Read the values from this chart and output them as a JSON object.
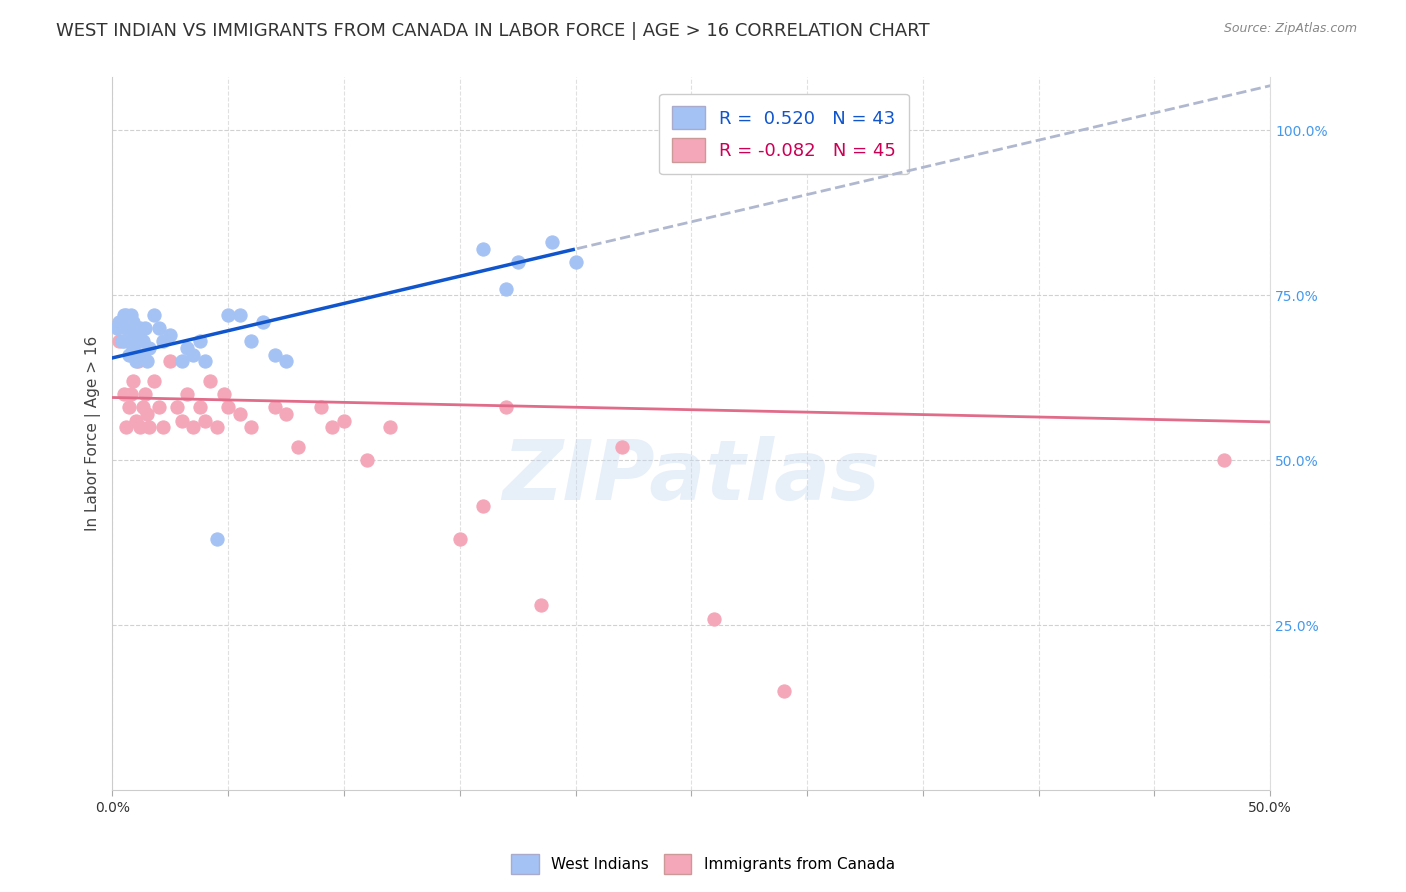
{
  "title": "WEST INDIAN VS IMMIGRANTS FROM CANADA IN LABOR FORCE | AGE > 16 CORRELATION CHART",
  "source": "Source: ZipAtlas.com",
  "ylabel": "In Labor Force | Age > 16",
  "right_yticks": [
    "100.0%",
    "75.0%",
    "50.0%",
    "25.0%"
  ],
  "right_ytick_vals": [
    1.0,
    0.75,
    0.5,
    0.25
  ],
  "xlim": [
    0.0,
    0.5
  ],
  "ylim": [
    0.0,
    1.08
  ],
  "blue_R": 0.52,
  "blue_N": 43,
  "pink_R": -0.082,
  "pink_N": 45,
  "blue_color": "#a4c2f4",
  "pink_color": "#f4a7b9",
  "blue_line_color": "#1155cc",
  "pink_line_color": "#e06c8a",
  "dashed_line_color": "#b0b8d0",
  "watermark": "ZIPatlas",
  "blue_scatter_x": [
    0.002,
    0.003,
    0.004,
    0.005,
    0.005,
    0.006,
    0.006,
    0.007,
    0.007,
    0.008,
    0.008,
    0.009,
    0.009,
    0.01,
    0.01,
    0.011,
    0.012,
    0.012,
    0.013,
    0.014,
    0.015,
    0.016,
    0.018,
    0.02,
    0.022,
    0.025,
    0.03,
    0.032,
    0.035,
    0.038,
    0.04,
    0.045,
    0.05,
    0.055,
    0.06,
    0.065,
    0.07,
    0.075,
    0.16,
    0.17,
    0.175,
    0.19,
    0.2
  ],
  "blue_scatter_y": [
    0.7,
    0.71,
    0.68,
    0.72,
    0.68,
    0.7,
    0.72,
    0.66,
    0.7,
    0.68,
    0.72,
    0.67,
    0.71,
    0.68,
    0.65,
    0.69,
    0.7,
    0.66,
    0.68,
    0.7,
    0.65,
    0.67,
    0.72,
    0.7,
    0.68,
    0.69,
    0.65,
    0.67,
    0.66,
    0.68,
    0.65,
    0.38,
    0.72,
    0.72,
    0.68,
    0.71,
    0.66,
    0.65,
    0.82,
    0.76,
    0.8,
    0.83,
    0.8
  ],
  "pink_scatter_x": [
    0.003,
    0.005,
    0.006,
    0.007,
    0.008,
    0.009,
    0.01,
    0.011,
    0.012,
    0.013,
    0.014,
    0.015,
    0.016,
    0.018,
    0.02,
    0.022,
    0.025,
    0.028,
    0.03,
    0.032,
    0.035,
    0.038,
    0.04,
    0.042,
    0.045,
    0.048,
    0.05,
    0.055,
    0.06,
    0.07,
    0.075,
    0.08,
    0.09,
    0.095,
    0.1,
    0.11,
    0.12,
    0.15,
    0.16,
    0.17,
    0.185,
    0.22,
    0.26,
    0.29,
    0.48
  ],
  "pink_scatter_y": [
    0.68,
    0.6,
    0.55,
    0.58,
    0.6,
    0.62,
    0.56,
    0.65,
    0.55,
    0.58,
    0.6,
    0.57,
    0.55,
    0.62,
    0.58,
    0.55,
    0.65,
    0.58,
    0.56,
    0.6,
    0.55,
    0.58,
    0.56,
    0.62,
    0.55,
    0.6,
    0.58,
    0.57,
    0.55,
    0.58,
    0.57,
    0.52,
    0.58,
    0.55,
    0.56,
    0.5,
    0.55,
    0.38,
    0.43,
    0.58,
    0.28,
    0.52,
    0.26,
    0.15,
    0.5
  ],
  "background_color": "#ffffff",
  "grid_color": "#cccccc",
  "title_fontsize": 13,
  "axis_label_fontsize": 11,
  "tick_fontsize": 10,
  "legend_fontsize": 13
}
